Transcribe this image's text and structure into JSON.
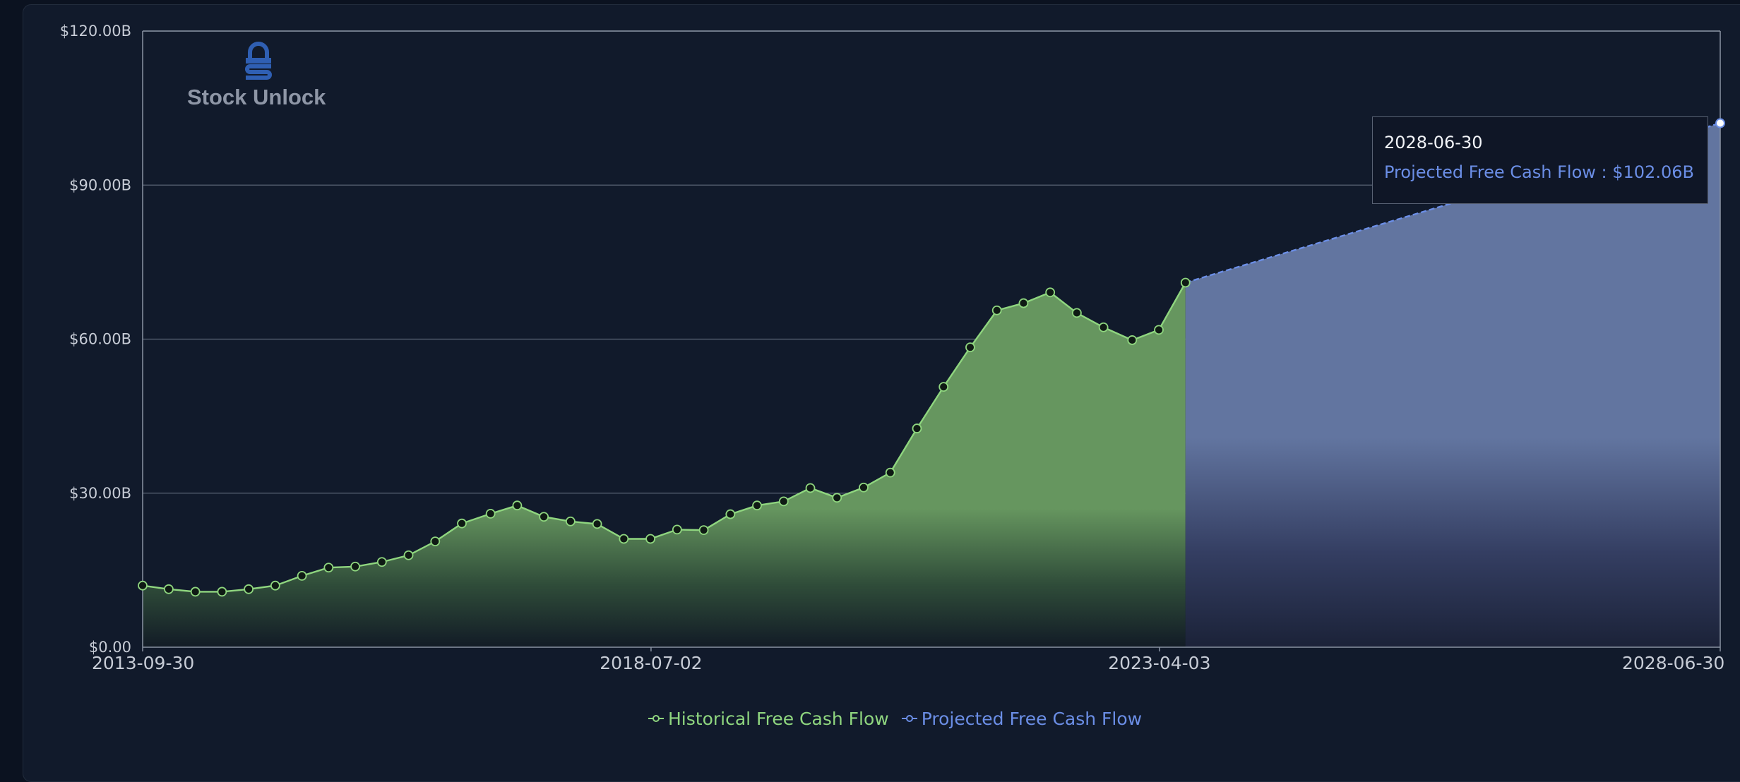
{
  "watermark": {
    "text": "Stock Unlock"
  },
  "tooltip": {
    "date": "2028-06-30",
    "label": "Projected Free Cash Flow : $102.06B"
  },
  "colors": {
    "historical": "#8fd67f",
    "projected": "#6b8ee6",
    "background": "#111a2b",
    "grid": "#5b6577",
    "axis_text": "#c7ccd6"
  },
  "chart_data": {
    "type": "area",
    "title": "",
    "xlabel": "",
    "ylabel": "",
    "ylim": [
      0,
      120
    ],
    "y_ticks": [
      "$0.00",
      "$30.00B",
      "$60.00B",
      "$90.00B",
      "$120.00B"
    ],
    "y_tick_values": [
      0,
      30,
      60,
      90,
      120
    ],
    "x_ticks": [
      "2013-09-30",
      "2018-07-02",
      "2023-04-03",
      "2028-06-30"
    ],
    "grid": true,
    "legend_placement": "bottom-center",
    "series": [
      {
        "name": "Historical Free Cash Flow",
        "x": [
          "2013-09-30",
          "2013-12-28",
          "2014-03-29",
          "2014-06-28",
          "2014-09-27",
          "2014-12-27",
          "2015-03-28",
          "2015-06-27",
          "2015-09-26",
          "2015-12-26",
          "2016-03-26",
          "2016-06-25",
          "2016-09-24",
          "2016-12-31",
          "2017-04-01",
          "2017-07-01",
          "2017-09-30",
          "2017-12-30",
          "2018-03-31",
          "2018-06-30",
          "2018-09-29",
          "2018-12-29",
          "2019-03-30",
          "2019-06-29",
          "2019-09-28",
          "2019-12-28",
          "2020-03-28",
          "2020-06-27",
          "2020-09-26",
          "2020-12-26",
          "2021-03-27",
          "2021-06-26",
          "2021-09-25",
          "2021-12-25",
          "2022-03-26",
          "2022-06-25",
          "2022-09-24",
          "2022-12-31",
          "2023-04-01",
          "2023-07-01"
        ],
        "values": [
          12.0,
          11.3,
          10.8,
          10.8,
          11.3,
          12.0,
          13.9,
          15.5,
          15.7,
          16.6,
          17.9,
          20.6,
          24.1,
          26.0,
          27.6,
          25.4,
          24.5,
          24.0,
          21.1,
          21.1,
          22.9,
          22.8,
          25.9,
          27.6,
          28.4,
          31.0,
          29.1,
          31.1,
          34.0,
          42.6,
          50.7,
          58.4,
          65.6,
          67.0,
          69.1,
          65.1,
          62.3,
          59.8,
          61.8,
          71.0
        ]
      },
      {
        "name": "Projected Free Cash Flow",
        "x": [
          "2023-07-01",
          "2028-06-30"
        ],
        "values": [
          71.0,
          102.06
        ]
      }
    ]
  }
}
